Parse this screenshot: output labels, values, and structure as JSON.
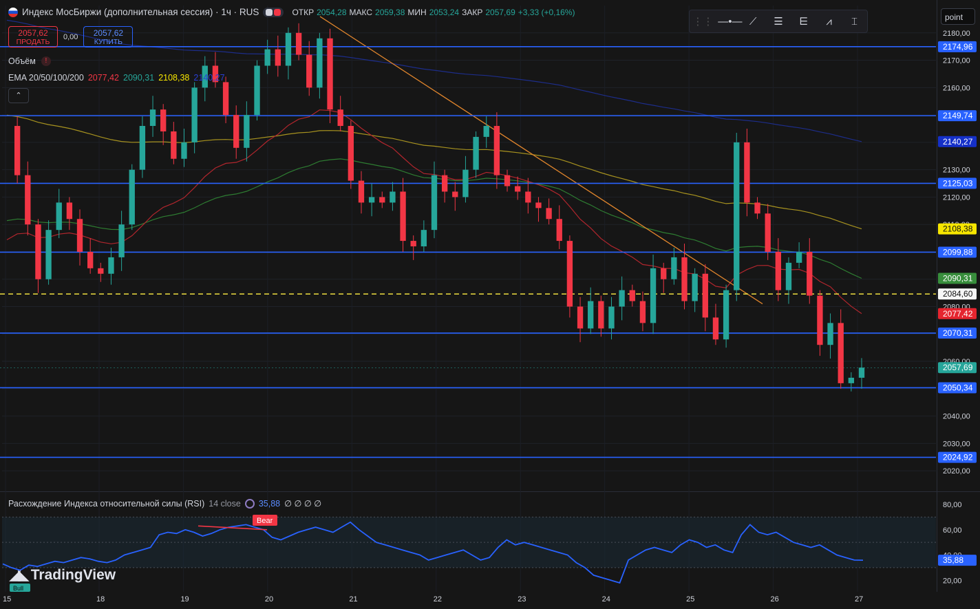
{
  "header": {
    "title": "Индекс МосБиржи (дополнительная сессия) · 1ч · RUS",
    "open_label": "ОТКР",
    "open": "2054,28",
    "high_label": "МАКС",
    "high": "2059,38",
    "low_label": "МИН",
    "low": "2053,24",
    "close_label": "ЗАКР",
    "close": "2057,69",
    "change": "+3,33 (+0,16%)"
  },
  "trade": {
    "sell_price": "2057,62",
    "sell_label": "ПРОДАТЬ",
    "spread": "0,00",
    "buy_price": "2057,62",
    "buy_label": "КУПИТЬ"
  },
  "indicators": {
    "volume_label": "Объём",
    "ema_label": "EMA 20/50/100/200",
    "ema20": "2077,42",
    "ema50": "2090,31",
    "ema100": "2108,38",
    "ema200": "2140,27",
    "rsi_label": "Расхождение Индекса относительной силы (RSI)",
    "rsi_params": "14 close",
    "rsi_value": "35,88",
    "rsi_flags": "∅ ∅ ∅ ∅"
  },
  "toolbar": {
    "icons": [
      "grip-icon",
      "horizontal-ray-icon",
      "trend-line-icon",
      "fib-icon",
      "pitchfork-icon",
      "path-icon",
      "cursor-icon"
    ]
  },
  "point_box": "point",
  "brand": "TradingView",
  "colors": {
    "up": "#26a69a",
    "down": "#f23645",
    "level": "#2962ff",
    "ema20": "#b2262d",
    "ema50": "#2e7d32",
    "ema100": "#a8931f",
    "ema200": "#1d2d8a",
    "trend": "#e0852c",
    "rsi": "#2962ff",
    "dashed": "#f0e040"
  },
  "chart_data": [
    {
      "type": "candlestick",
      "title": "Индекс МосБиржи (дополнительная сессия) · 1ч · RUS",
      "x_ticks": [
        "15",
        "18",
        "19",
        "20",
        "21",
        "22",
        "23",
        "24",
        "25",
        "26",
        "27"
      ],
      "y_ticks": [
        "2020,00",
        "2030,00",
        "2040,00",
        "2050,00",
        "2060,00",
        "2070,00",
        "2080,00",
        "2090,00",
        "2100,00",
        "2110,00",
        "2120,00",
        "2130,00",
        "2140,00",
        "2150,00",
        "2160,00",
        "2170,00",
        "2180,00"
      ],
      "ylim": [
        2013,
        2190
      ],
      "horizontal_levels": [
        2174.96,
        2149.74,
        2125.03,
        2099.88,
        2070.31,
        2050.34,
        2024.92
      ],
      "level_labels": [
        "2174,96",
        "2149,74",
        "2125,03",
        "2099,88",
        "2070,31",
        "2050,34",
        "2024,92"
      ],
      "dashed_level": 2084.6,
      "dashed_label": "2084,60",
      "ohlc_path": [
        2146,
        2128,
        2110,
        2090,
        2108,
        2118,
        2112,
        2100,
        2094,
        2092,
        2098,
        2110,
        2130,
        2146,
        2152,
        2144,
        2134,
        2140,
        2160,
        2168,
        2162,
        2150,
        2138,
        2150,
        2168,
        2174,
        2168,
        2180,
        2172,
        2160,
        2178,
        2152,
        2146,
        2126,
        2118,
        2120,
        2118,
        2122,
        2104,
        2102,
        2108,
        2128,
        2122,
        2120,
        2130,
        2142,
        2146,
        2128,
        2124,
        2122,
        2118,
        2116,
        2112,
        2104,
        2080,
        2072,
        2082,
        2072,
        2080,
        2086,
        2082,
        2074,
        2094,
        2090,
        2098,
        2082,
        2092,
        2076,
        2068,
        2086,
        2140,
        2118,
        2114,
        2100,
        2086,
        2096,
        2100,
        2084,
        2066,
        2074,
        2052,
        2054,
        2057.69
      ],
      "current_price": 2057.69,
      "current_label": "2057,69",
      "ema_last": {
        "ema20": 2077.42,
        "ema50": 2090.31,
        "ema100": 2108.38,
        "ema200": 2140.27
      },
      "ema_last_labels": {
        "ema20": "2077,42",
        "ema50": "2090,31",
        "ema100": "2108,38",
        "ema200": "2140,27"
      }
    },
    {
      "type": "line",
      "title": "Расхождение Индекса относительной силы (RSI)",
      "y_ticks": [
        "20,00",
        "40,00",
        "60,00",
        "80,00"
      ],
      "ylim": [
        12,
        86
      ],
      "bands": [
        70,
        50,
        30
      ],
      "values": [
        33,
        30,
        28,
        32,
        31,
        33,
        35,
        34,
        36,
        38,
        37,
        35,
        34,
        36,
        40,
        42,
        44,
        46,
        56,
        58,
        57,
        60,
        58,
        55,
        57,
        60,
        62,
        63,
        64,
        62,
        60,
        54,
        52,
        55,
        58,
        60,
        62,
        60,
        58,
        62,
        66,
        60,
        55,
        50,
        48,
        46,
        44,
        42,
        40,
        36,
        38,
        40,
        42,
        44,
        40,
        36,
        38,
        46,
        52,
        48,
        50,
        48,
        46,
        44,
        42,
        40,
        34,
        30,
        24,
        22,
        20,
        18,
        36,
        40,
        44,
        46,
        44,
        42,
        48,
        52,
        50,
        46,
        48,
        44,
        42,
        56,
        64,
        58,
        56,
        58,
        54,
        50,
        48,
        46,
        48,
        44,
        40,
        38,
        36,
        35.88
      ],
      "current_label": "35,88",
      "annotations": [
        {
          "text": "Bear"
        },
        {
          "text": "Bull"
        }
      ]
    }
  ]
}
